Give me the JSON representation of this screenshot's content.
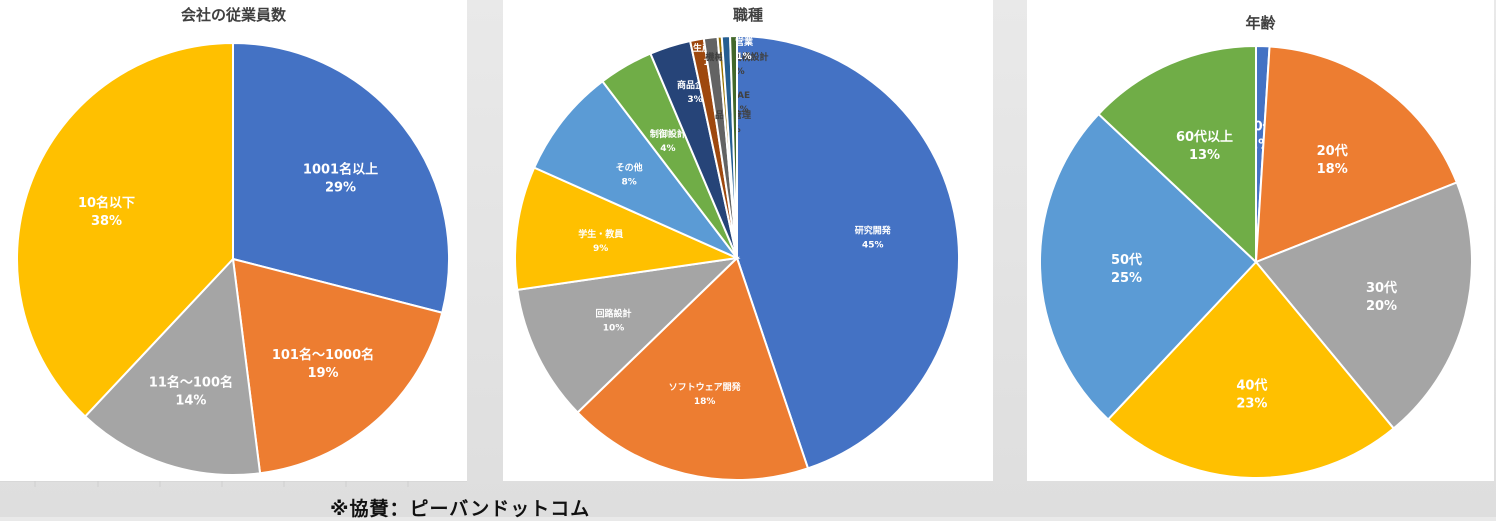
{
  "footer": "※協賛：ピーバンドットコム",
  "chart_data": [
    {
      "type": "pie",
      "title": "会社の従業員数",
      "slices": [
        {
          "label": "1001名以上",
          "value": 29,
          "pct": "29%",
          "color": "#4472C4"
        },
        {
          "label": "101名〜1000名",
          "value": 19,
          "pct": "19%",
          "color": "#ED7D31"
        },
        {
          "label": "11名〜100名",
          "value": 14,
          "pct": "14%",
          "color": "#A5A5A5"
        },
        {
          "label": "10名以下",
          "value": 38,
          "pct": "38%",
          "color": "#FFC000"
        }
      ]
    },
    {
      "type": "pie",
      "title": "職種",
      "slices": [
        {
          "label": "研究開発",
          "value": 45,
          "pct": "45%",
          "color": "#4472C4"
        },
        {
          "label": "ソフトウェア開発",
          "value": 18,
          "pct": "18%",
          "color": "#ED7D31"
        },
        {
          "label": "回路設計",
          "value": 10,
          "pct": "10%",
          "color": "#A5A5A5"
        },
        {
          "label": "学生・教員",
          "value": 9,
          "pct": "9%",
          "color": "#FFC000"
        },
        {
          "label": "その他",
          "value": 8,
          "pct": "8%",
          "color": "#5B9BD5"
        },
        {
          "label": "制御設計",
          "value": 4,
          "pct": "4%",
          "color": "#70AD47"
        },
        {
          "label": "商品企画",
          "value": 3,
          "pct": "3%",
          "color": "#264478"
        },
        {
          "label": "生産技術",
          "value": 1,
          "pct": "1%",
          "color": "#9E480E"
        },
        {
          "label": "品質管理",
          "value": 1,
          "pct": "1%",
          "color": "#636363"
        },
        {
          "label": "機械・機構設計",
          "value": 0.3,
          "pct": "0%",
          "color": "#997300"
        },
        {
          "label": "FAE",
          "value": 0.6,
          "pct": "1%",
          "color": "#255E91"
        },
        {
          "label": "営業",
          "value": 0.5,
          "pct": "1%",
          "color": "#43682B"
        }
      ]
    },
    {
      "type": "pie",
      "title": "年齢",
      "slices": [
        {
          "label": "10代",
          "value": 1,
          "pct": "1%",
          "color": "#4472C4"
        },
        {
          "label": "20代",
          "value": 18,
          "pct": "18%",
          "color": "#ED7D31"
        },
        {
          "label": "30代",
          "value": 20,
          "pct": "20%",
          "color": "#A5A5A5"
        },
        {
          "label": "40代",
          "value": 23,
          "pct": "23%",
          "color": "#FFC000"
        },
        {
          "label": "50代",
          "value": 25,
          "pct": "25%",
          "color": "#5B9BD5"
        },
        {
          "label": "60代以上",
          "value": 13,
          "pct": "13%",
          "color": "#70AD47"
        }
      ]
    }
  ]
}
